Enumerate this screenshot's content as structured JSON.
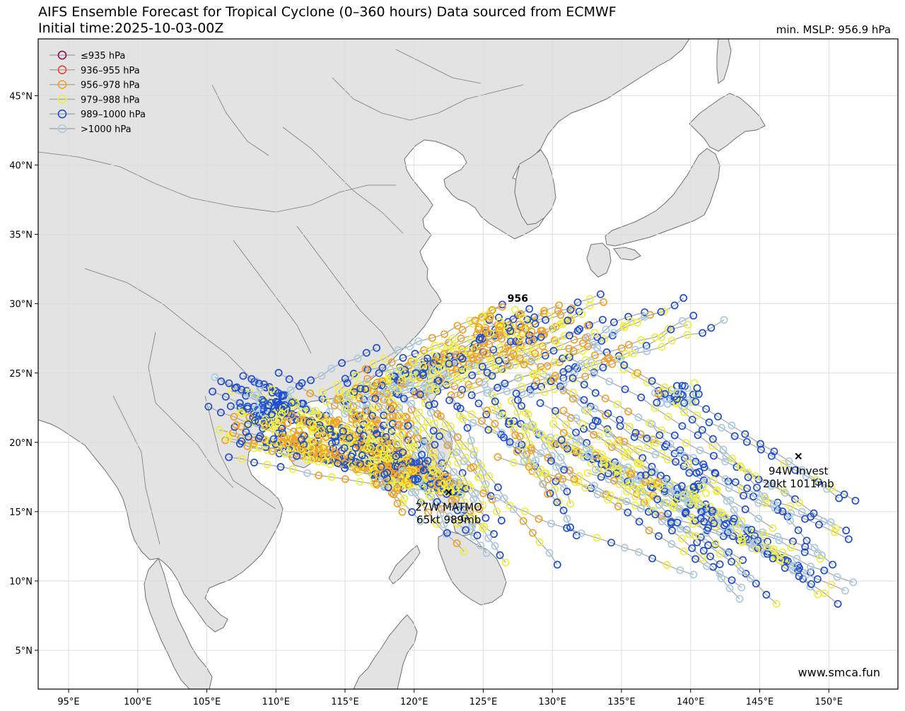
{
  "header": {
    "title": "AIFS Ensemble Forecast for Tropical Cyclone (0–360 hours) Data sourced from ECMWF",
    "subtitle": "Initial time:2025-10-03-00Z",
    "min_mslp": "min. MSLP: 956.9 hPa"
  },
  "legend": [
    {
      "label": "≤935 hPa",
      "color": "#8b0a50"
    },
    {
      "label": "936–955 hPa",
      "color": "#e8432a"
    },
    {
      "label": "956–978 hPa",
      "color": "#f4a020"
    },
    {
      "label": "979–988 hPa",
      "color": "#f2ef3a"
    },
    {
      "label": "989–1000 hPa",
      "color": "#1f4fd1"
    },
    {
      "label": ">1000 hPa",
      "color": "#a8cbe6"
    }
  ],
  "axes": {
    "lon_ticks": [
      "95°E",
      "100°E",
      "105°E",
      "110°E",
      "115°E",
      "120°E",
      "125°E",
      "130°E",
      "135°E",
      "140°E",
      "145°E",
      "150°E"
    ],
    "lat_ticks": [
      "5°N",
      "10°N",
      "15°N",
      "20°N",
      "25°N",
      "30°N",
      "35°N",
      "40°N",
      "45°N"
    ],
    "lon_values": [
      95,
      100,
      105,
      110,
      115,
      120,
      125,
      130,
      135,
      140,
      145,
      150
    ],
    "lat_values": [
      5,
      10,
      15,
      20,
      25,
      30,
      35,
      40,
      45
    ],
    "lon_range": [
      92.8,
      155
    ],
    "lat_range": [
      2.2,
      49.1
    ]
  },
  "storms": [
    {
      "id": "matmo",
      "name": "27W MATMO",
      "info": "65kt 989mb",
      "lon": 122.5,
      "lat": 16.4
    },
    {
      "id": "invest",
      "name": "94W Invest",
      "info": "20kt 1011mb",
      "lon": 147.8,
      "lat": 19.0
    }
  ],
  "min_marker": {
    "label": "956",
    "lon": 127.5,
    "lat": 30.4
  },
  "watermark": "www.smca.fun",
  "colors": {
    "land": "#e3e3e3",
    "sea": "#ffffff",
    "track": "#aaaaaa",
    "grid": "#dedede"
  }
}
